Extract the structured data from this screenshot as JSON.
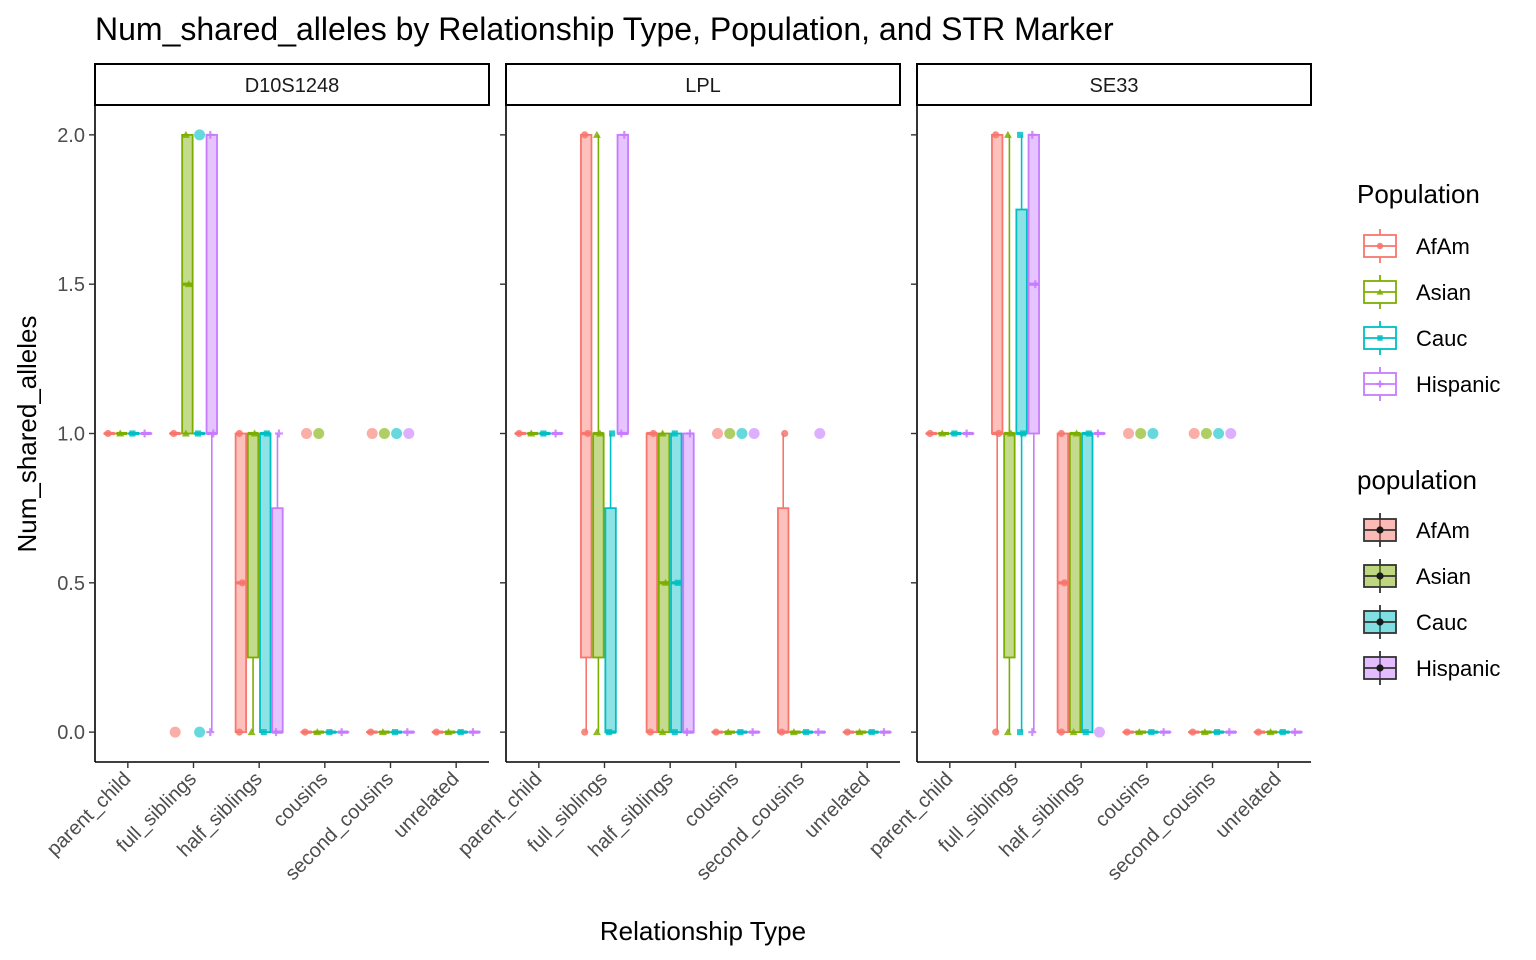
{
  "chart_data": {
    "type": "boxplot",
    "title": "Num_shared_alleles by Relationship Type, Population, and STR Marker",
    "xlabel": "Relationship Type",
    "ylabel": "Num_shared_alleles",
    "ylim": [
      -0.1,
      2.1
    ],
    "yticks": [
      "0.0",
      "0.5",
      "1.0",
      "1.5",
      "2.0"
    ],
    "ytick_values": [
      0,
      0.5,
      1,
      1.5,
      2
    ],
    "categories": [
      "parent_child",
      "full_siblings",
      "half_siblings",
      "cousins",
      "second_cousins",
      "unrelated"
    ],
    "populations": [
      "AfAm",
      "Asian",
      "Cauc",
      "Hispanic"
    ],
    "colors": {
      "AfAm": "#F8766D",
      "Asian": "#7CAE00",
      "Cauc": "#00BFC4",
      "Hispanic": "#C77CFF"
    },
    "legend_color": {
      "title": "Population",
      "entries": [
        "AfAm",
        "Asian",
        "Cauc",
        "Hispanic"
      ]
    },
    "legend_fill": {
      "title": "population",
      "entries": [
        "AfAm",
        "Asian",
        "Cauc",
        "Hispanic"
      ]
    },
    "facets": [
      {
        "name": "D10S1248",
        "boxes": [
          [
            {
              "q1": 1,
              "med": 1,
              "q3": 1,
              "min": 1,
              "max": 1
            },
            {
              "q1": 1,
              "med": 1,
              "q3": 1,
              "min": 1,
              "max": 1
            },
            {
              "q1": 1,
              "med": 1,
              "q3": 1,
              "min": 1,
              "max": 1
            },
            {
              "q1": 1,
              "med": 1,
              "q3": 1,
              "min": 1,
              "max": 1
            }
          ],
          [
            {
              "q1": 1,
              "med": 1,
              "q3": 1,
              "min": 1,
              "max": 1,
              "out": [
                0
              ]
            },
            {
              "q1": 1,
              "med": 1.5,
              "q3": 2,
              "min": 1,
              "max": 2
            },
            {
              "q1": 1,
              "med": 1,
              "q3": 1,
              "min": 1,
              "max": 1,
              "out": [
                0,
                2
              ]
            },
            {
              "q1": 1,
              "med": 1,
              "q3": 2,
              "min": 0,
              "max": 2
            }
          ],
          [
            {
              "q1": 0,
              "med": 0.5,
              "q3": 1,
              "min": 0,
              "max": 1
            },
            {
              "q1": 0.25,
              "med": 1,
              "q3": 1,
              "min": 0,
              "max": 1
            },
            {
              "q1": 0,
              "med": 1,
              "q3": 1,
              "min": 0,
              "max": 1
            },
            {
              "q1": 0,
              "med": 0,
              "q3": 0.75,
              "min": 0,
              "max": 1
            }
          ],
          [
            {
              "q1": 0,
              "med": 0,
              "q3": 0,
              "min": 0,
              "max": 0,
              "out": [
                1
              ]
            },
            {
              "q1": 0,
              "med": 0,
              "q3": 0,
              "min": 0,
              "max": 0,
              "out": [
                1
              ]
            },
            {
              "q1": 0,
              "med": 0,
              "q3": 0,
              "min": 0,
              "max": 0
            },
            {
              "q1": 0,
              "med": 0,
              "q3": 0,
              "min": 0,
              "max": 0
            }
          ],
          [
            {
              "q1": 0,
              "med": 0,
              "q3": 0,
              "min": 0,
              "max": 0,
              "out": [
                1
              ]
            },
            {
              "q1": 0,
              "med": 0,
              "q3": 0,
              "min": 0,
              "max": 0,
              "out": [
                1
              ]
            },
            {
              "q1": 0,
              "med": 0,
              "q3": 0,
              "min": 0,
              "max": 0,
              "out": [
                1
              ]
            },
            {
              "q1": 0,
              "med": 0,
              "q3": 0,
              "min": 0,
              "max": 0,
              "out": [
                1
              ]
            }
          ],
          [
            {
              "q1": 0,
              "med": 0,
              "q3": 0,
              "min": 0,
              "max": 0
            },
            {
              "q1": 0,
              "med": 0,
              "q3": 0,
              "min": 0,
              "max": 0
            },
            {
              "q1": 0,
              "med": 0,
              "q3": 0,
              "min": 0,
              "max": 0
            },
            {
              "q1": 0,
              "med": 0,
              "q3": 0,
              "min": 0,
              "max": 0
            }
          ]
        ]
      },
      {
        "name": "LPL",
        "boxes": [
          [
            {
              "q1": 1,
              "med": 1,
              "q3": 1,
              "min": 1,
              "max": 1
            },
            {
              "q1": 1,
              "med": 1,
              "q3": 1,
              "min": 1,
              "max": 1
            },
            {
              "q1": 1,
              "med": 1,
              "q3": 1,
              "min": 1,
              "max": 1
            },
            {
              "q1": 1,
              "med": 1,
              "q3": 1,
              "min": 1,
              "max": 1
            }
          ],
          [
            {
              "q1": 0.25,
              "med": 1,
              "q3": 2,
              "min": 0,
              "max": 2
            },
            {
              "q1": 0.25,
              "med": 1,
              "q3": 1,
              "min": 0,
              "max": 2
            },
            {
              "q1": 0,
              "med": 0,
              "q3": 0.75,
              "min": 0,
              "max": 1
            },
            {
              "q1": 1,
              "med": 1,
              "q3": 2,
              "min": 1,
              "max": 2
            }
          ],
          [
            {
              "q1": 0,
              "med": 1,
              "q3": 1,
              "min": 0,
              "max": 1
            },
            {
              "q1": 0,
              "med": 0.5,
              "q3": 1,
              "min": 0,
              "max": 1
            },
            {
              "q1": 0,
              "med": 0.5,
              "q3": 1,
              "min": 0,
              "max": 1
            },
            {
              "q1": 0,
              "med": 0,
              "q3": 1,
              "min": 0,
              "max": 1
            }
          ],
          [
            {
              "q1": 0,
              "med": 0,
              "q3": 0,
              "min": 0,
              "max": 0,
              "out": [
                1
              ]
            },
            {
              "q1": 0,
              "med": 0,
              "q3": 0,
              "min": 0,
              "max": 0,
              "out": [
                1
              ]
            },
            {
              "q1": 0,
              "med": 0,
              "q3": 0,
              "min": 0,
              "max": 0,
              "out": [
                1
              ]
            },
            {
              "q1": 0,
              "med": 0,
              "q3": 0,
              "min": 0,
              "max": 0,
              "out": [
                1
              ]
            }
          ],
          [
            {
              "q1": 0,
              "med": 0,
              "q3": 0.75,
              "min": 0,
              "max": 1
            },
            {
              "q1": 0,
              "med": 0,
              "q3": 0,
              "min": 0,
              "max": 0
            },
            {
              "q1": 0,
              "med": 0,
              "q3": 0,
              "min": 0,
              "max": 0
            },
            {
              "q1": 0,
              "med": 0,
              "q3": 0,
              "min": 0,
              "max": 0,
              "out": [
                1
              ]
            }
          ],
          [
            {
              "q1": 0,
              "med": 0,
              "q3": 0,
              "min": 0,
              "max": 0
            },
            {
              "q1": 0,
              "med": 0,
              "q3": 0,
              "min": 0,
              "max": 0
            },
            {
              "q1": 0,
              "med": 0,
              "q3": 0,
              "min": 0,
              "max": 0
            },
            {
              "q1": 0,
              "med": 0,
              "q3": 0,
              "min": 0,
              "max": 0
            }
          ]
        ]
      },
      {
        "name": "SE33",
        "boxes": [
          [
            {
              "q1": 1,
              "med": 1,
              "q3": 1,
              "min": 1,
              "max": 1
            },
            {
              "q1": 1,
              "med": 1,
              "q3": 1,
              "min": 1,
              "max": 1
            },
            {
              "q1": 1,
              "med": 1,
              "q3": 1,
              "min": 1,
              "max": 1
            },
            {
              "q1": 1,
              "med": 1,
              "q3": 1,
              "min": 1,
              "max": 1
            }
          ],
          [
            {
              "q1": 1,
              "med": 1,
              "q3": 2,
              "min": 0,
              "max": 2
            },
            {
              "q1": 0.25,
              "med": 1,
              "q3": 1,
              "min": 0,
              "max": 2
            },
            {
              "q1": 1,
              "med": 1,
              "q3": 1.75,
              "min": 0,
              "max": 2
            },
            {
              "q1": 1,
              "med": 1.5,
              "q3": 2,
              "min": 0,
              "max": 2
            }
          ],
          [
            {
              "q1": 0,
              "med": 0.5,
              "q3": 1,
              "min": 0,
              "max": 1
            },
            {
              "q1": 0,
              "med": 1,
              "q3": 1,
              "min": 0,
              "max": 1
            },
            {
              "q1": 0,
              "med": 1,
              "q3": 1,
              "min": 0,
              "max": 1
            },
            {
              "q1": 1,
              "med": 1,
              "q3": 1,
              "min": 1,
              "max": 1,
              "out": [
                0
              ]
            }
          ],
          [
            {
              "q1": 0,
              "med": 0,
              "q3": 0,
              "min": 0,
              "max": 0,
              "out": [
                1
              ]
            },
            {
              "q1": 0,
              "med": 0,
              "q3": 0,
              "min": 0,
              "max": 0,
              "out": [
                1
              ]
            },
            {
              "q1": 0,
              "med": 0,
              "q3": 0,
              "min": 0,
              "max": 0,
              "out": [
                1
              ]
            },
            {
              "q1": 0,
              "med": 0,
              "q3": 0,
              "min": 0,
              "max": 0
            }
          ],
          [
            {
              "q1": 0,
              "med": 0,
              "q3": 0,
              "min": 0,
              "max": 0,
              "out": [
                1
              ]
            },
            {
              "q1": 0,
              "med": 0,
              "q3": 0,
              "min": 0,
              "max": 0,
              "out": [
                1
              ]
            },
            {
              "q1": 0,
              "med": 0,
              "q3": 0,
              "min": 0,
              "max": 0,
              "out": [
                1
              ]
            },
            {
              "q1": 0,
              "med": 0,
              "q3": 0,
              "min": 0,
              "max": 0,
              "out": [
                1
              ]
            }
          ],
          [
            {
              "q1": 0,
              "med": 0,
              "q3": 0,
              "min": 0,
              "max": 0
            },
            {
              "q1": 0,
              "med": 0,
              "q3": 0,
              "min": 0,
              "max": 0
            },
            {
              "q1": 0,
              "med": 0,
              "q3": 0,
              "min": 0,
              "max": 0
            },
            {
              "q1": 0,
              "med": 0,
              "q3": 0,
              "min": 0,
              "max": 0
            }
          ]
        ]
      }
    ]
  }
}
